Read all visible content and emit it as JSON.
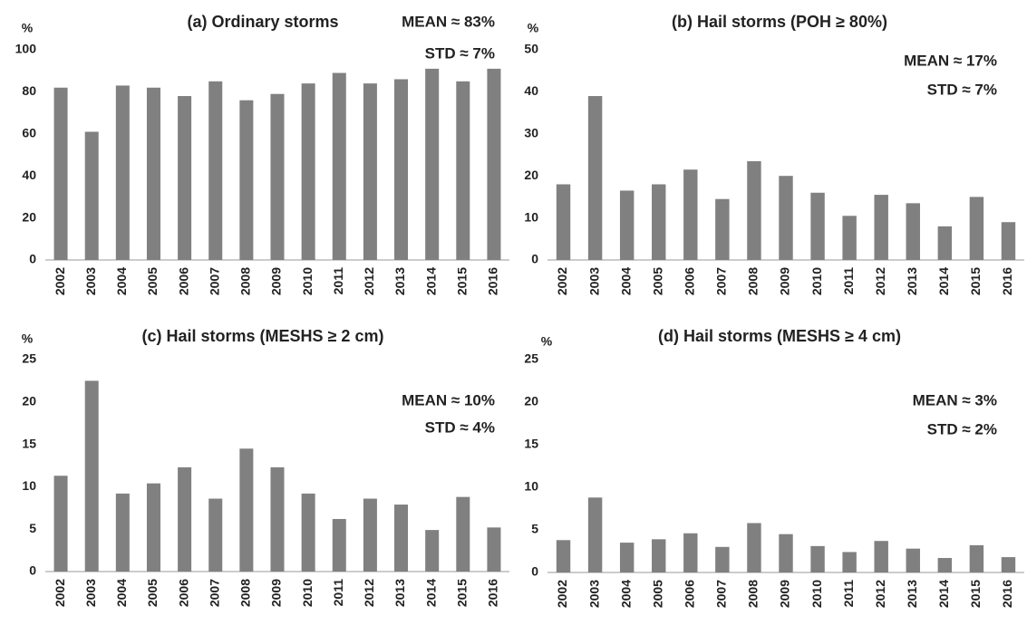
{
  "chart_data": [
    {
      "type": "bar",
      "title": "(a) Ordinary storms",
      "y_label": "%",
      "annotations": [
        "MEAN ≈ 83%",
        "STD ≈ 7%"
      ],
      "categories": [
        "2002",
        "2003",
        "2004",
        "2005",
        "2006",
        "2007",
        "2008",
        "2009",
        "2010",
        "2011",
        "2012",
        "2013",
        "2014",
        "2015",
        "2016"
      ],
      "values": [
        82,
        61,
        83,
        82,
        78,
        85,
        76,
        79,
        84,
        89,
        84,
        86,
        91,
        85,
        91
      ],
      "color": "#808080",
      "ylim": [
        0,
        100
      ],
      "yticks": [
        0,
        20,
        40,
        60,
        80,
        100
      ]
    },
    {
      "type": "bar",
      "title": "(b) Hail storms (POH ≥ 80%)",
      "y_label": "%",
      "annotations": [
        "MEAN ≈ 17%",
        "STD ≈ 7%"
      ],
      "categories": [
        "2002",
        "2003",
        "2004",
        "2005",
        "2006",
        "2007",
        "2008",
        "2009",
        "2010",
        "2011",
        "2012",
        "2013",
        "2014",
        "2015",
        "2016"
      ],
      "values": [
        18,
        39,
        16.5,
        18,
        21.5,
        14.5,
        23.5,
        20,
        16,
        10.5,
        15.5,
        13.5,
        8,
        15,
        9
      ],
      "color": "#808080",
      "ylim": [
        0,
        50
      ],
      "yticks": [
        0,
        10,
        20,
        30,
        40,
        50
      ]
    },
    {
      "type": "bar",
      "title": "(c) Hail storms (MESHS ≥ 2 cm)",
      "y_label": "%",
      "annotations": [
        "MEAN ≈ 10%",
        "STD ≈ 4%"
      ],
      "categories": [
        "2002",
        "2003",
        "2004",
        "2005",
        "2006",
        "2007",
        "2008",
        "2009",
        "2010",
        "2011",
        "2012",
        "2013",
        "2014",
        "2015",
        "2016"
      ],
      "values": [
        11.3,
        22.5,
        9.2,
        10.4,
        12.3,
        8.6,
        14.5,
        12.3,
        9.2,
        6.2,
        8.6,
        7.9,
        4.9,
        8.8,
        5.2
      ],
      "color": "#808080",
      "ylim": [
        0,
        25
      ],
      "yticks": [
        0,
        5,
        10,
        15,
        20,
        25
      ]
    },
    {
      "type": "bar",
      "title": "(d) Hail storms (MESHS ≥ 4 cm)",
      "y_label": "%",
      "annotations": [
        "MEAN ≈ 3%",
        "STD ≈ 2%"
      ],
      "categories": [
        "2002",
        "2003",
        "2004",
        "2005",
        "2006",
        "2007",
        "2008",
        "2009",
        "2010",
        "2011",
        "2012",
        "2013",
        "2014",
        "2015",
        "2016"
      ],
      "values": [
        3.8,
        8.8,
        3.5,
        3.9,
        4.6,
        3.0,
        5.8,
        4.5,
        3.1,
        2.4,
        3.7,
        2.8,
        1.7,
        3.2,
        1.8
      ],
      "color": "#808080",
      "ylim": [
        0,
        25
      ],
      "yticks": [
        0,
        5,
        10,
        15,
        20,
        25
      ]
    }
  ]
}
